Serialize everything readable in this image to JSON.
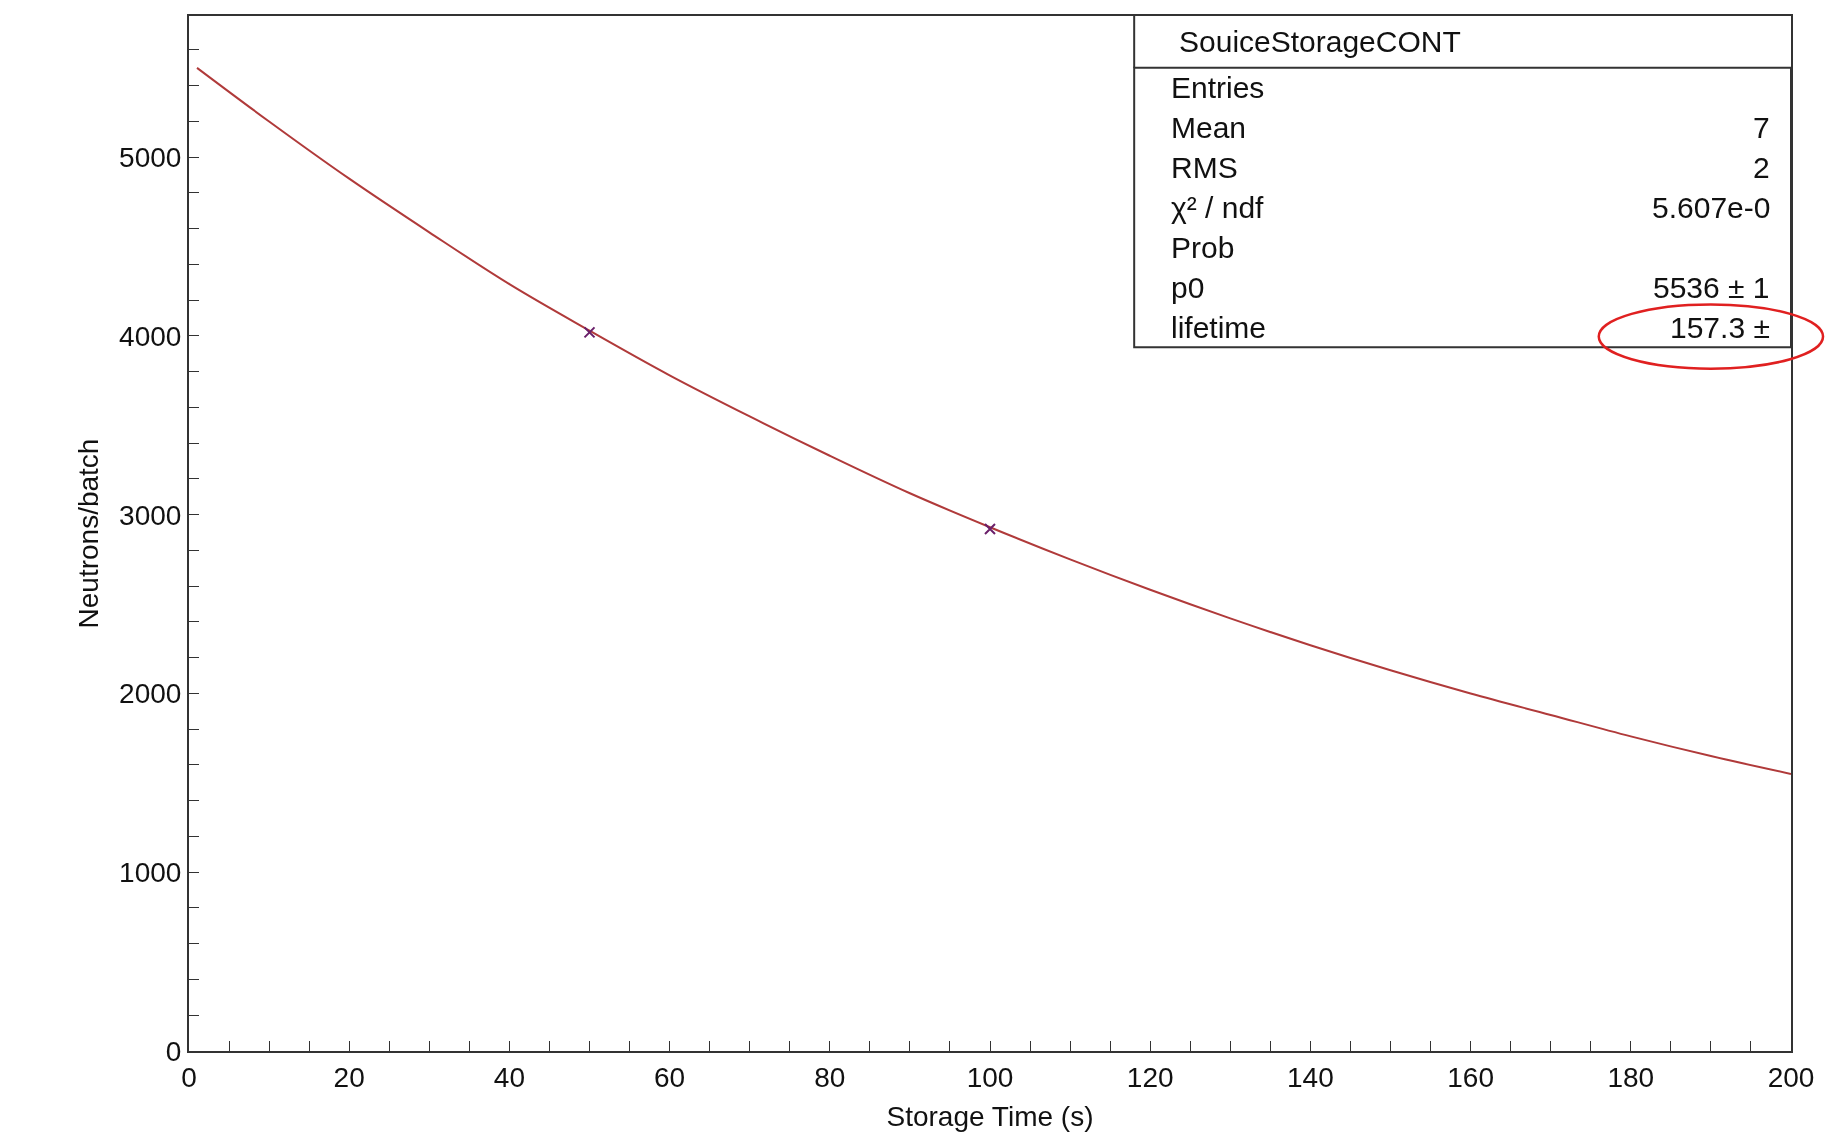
{
  "chart_data": {
    "type": "line",
    "title": "SouiceStorageCONT",
    "xlabel": "Storage Time (s)",
    "ylabel": "Neutrons/batch",
    "series": [
      {
        "color": "#b03a3a",
        "x": [
          1,
          10,
          20,
          30,
          40,
          50,
          60,
          70,
          80,
          90,
          100,
          110,
          120,
          130,
          140,
          150,
          160,
          170,
          180,
          190,
          200
        ],
        "values": [
          5500,
          5200,
          4880,
          4580,
          4290,
          4030,
          3780,
          3550,
          3330,
          3120,
          2930,
          2750,
          2580,
          2420,
          2270,
          2130,
          2000,
          1880,
          1760,
          1650,
          1550
        ]
      },
      {
        "type": "scatter",
        "color": "#6a1f6a",
        "marker": "cross",
        "x": [
          50,
          100
        ],
        "values": [
          4020,
          2920
        ]
      }
    ],
    "xlim": [
      0,
      200
    ],
    "ylim": [
      0,
      5790
    ],
    "xticks": [
      0,
      {
        "value": 5,
        "label": null
      },
      {
        "value": 10,
        "label": null
      },
      {
        "value": 15,
        "label": null
      },
      20,
      {
        "value": 25,
        "label": null
      },
      {
        "value": 30,
        "label": null
      },
      {
        "value": 35,
        "label": null
      },
      40,
      {
        "value": 45,
        "label": null
      },
      {
        "value": 50,
        "label": null
      },
      {
        "value": 55,
        "label": null
      },
      60,
      {
        "value": 65,
        "label": null
      },
      {
        "value": 70,
        "label": null
      },
      {
        "value": 75,
        "label": null
      },
      80,
      {
        "value": 85,
        "label": null
      },
      {
        "value": 90,
        "label": null
      },
      {
        "value": 95,
        "label": null
      },
      100,
      {
        "value": 105,
        "label": null
      },
      {
        "value": 110,
        "label": null
      },
      {
        "value": 115,
        "label": null
      },
      120,
      {
        "value": 125,
        "label": null
      },
      {
        "value": 130,
        "label": null
      },
      {
        "value": 135,
        "label": null
      },
      140,
      {
        "value": 145,
        "label": null
      },
      {
        "value": 150,
        "label": null
      },
      {
        "value": 155,
        "label": null
      },
      160,
      {
        "value": 165,
        "label": null
      },
      {
        "value": 170,
        "label": null
      },
      {
        "value": 175,
        "label": null
      },
      180,
      {
        "value": 185,
        "label": null
      },
      {
        "value": 190,
        "label": null
      },
      {
        "value": 195,
        "label": null
      },
      200
    ],
    "yticks": [
      0,
      {
        "value": 200,
        "label": null
      },
      {
        "value": 400,
        "label": null
      },
      {
        "value": 600,
        "label": null
      },
      {
        "value": 800,
        "label": null
      },
      1000,
      {
        "value": 1200,
        "label": null
      },
      {
        "value": 1400,
        "label": null
      },
      {
        "value": 1600,
        "label": null
      },
      {
        "value": 1800,
        "label": null
      },
      2000,
      {
        "value": 2200,
        "label": null
      },
      {
        "value": 2400,
        "label": null
      },
      {
        "value": 2600,
        "label": null
      },
      {
        "value": 2800,
        "label": null
      },
      3000,
      {
        "value": 3200,
        "label": null
      },
      {
        "value": 3400,
        "label": null
      },
      {
        "value": 3600,
        "label": null
      },
      {
        "value": 3800,
        "label": null
      },
      4000,
      {
        "value": 4200,
        "label": null
      },
      {
        "value": 4400,
        "label": null
      },
      {
        "value": 4600,
        "label": null
      },
      {
        "value": 4800,
        "label": null
      },
      5000,
      {
        "value": 5200,
        "label": null
      },
      {
        "value": 5400,
        "label": null
      },
      {
        "value": 5600,
        "label": null
      }
    ],
    "annotations": [
      "Entries\t",
      "Mean\t7",
      "RMS\t2",
      "χ² / ndf\t5.607e-0",
      "Prob\t",
      "p0\t5536 ± 1",
      "lifetime\t157.3 ±"
    ]
  }
}
